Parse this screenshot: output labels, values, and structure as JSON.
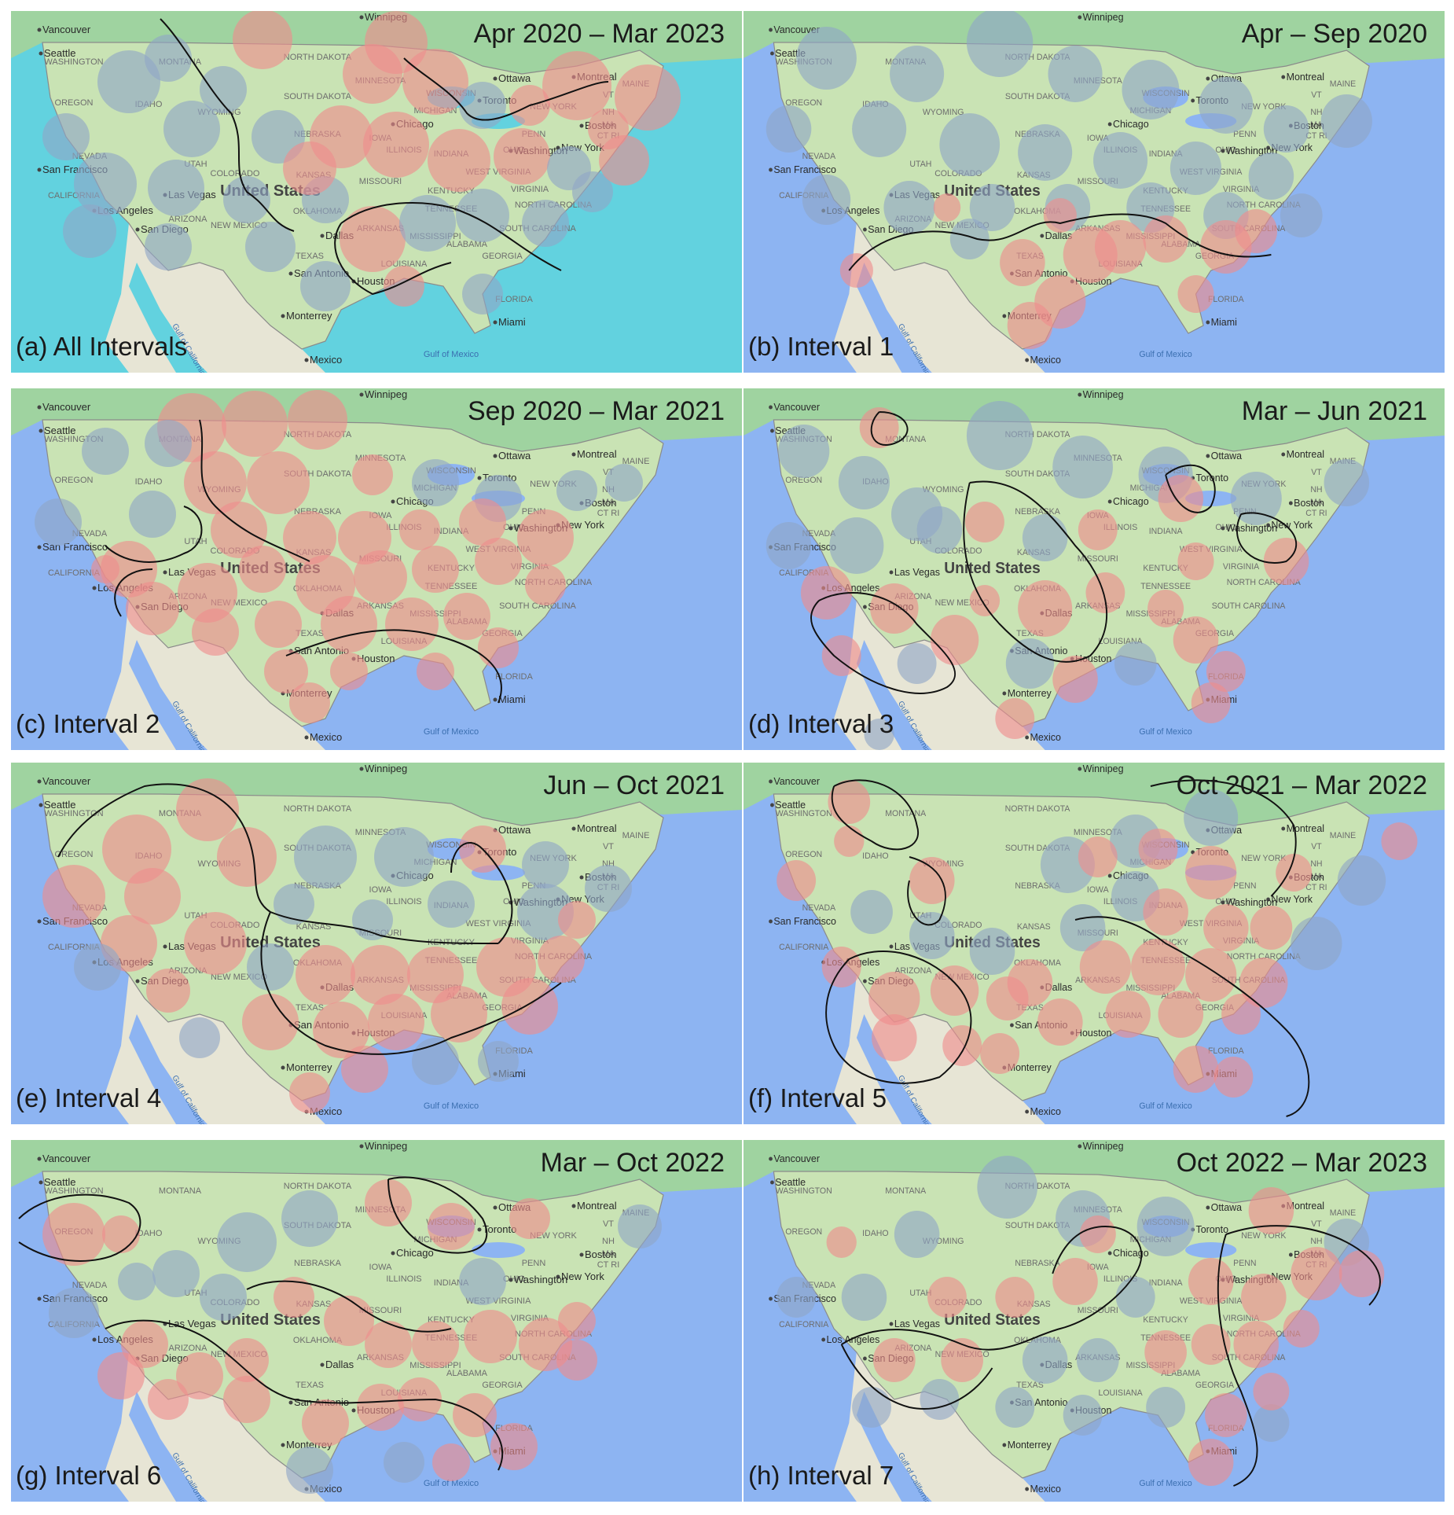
{
  "colors": {
    "ocean_a": "#62d2df",
    "ocean": "#8db4f2",
    "land": "#c9e3b4",
    "land_north": "#9fd3a0",
    "land_mexico": "#e7e5d5",
    "border": "#8a8a8a",
    "hot": "#ef8d8d",
    "cold": "#8fa6c7",
    "contour": "#111111"
  },
  "map_labels": {
    "cities": [
      "Vancouver",
      "Seattle",
      "Winnipeg",
      "Ottawa",
      "Montreal",
      "Toronto",
      "Boston",
      "New York",
      "Washington",
      "Chicago",
      "San Francisco",
      "Las Vegas",
      "Los Angeles",
      "San Diego",
      "Dallas",
      "San Antonio",
      "Houston",
      "Miami",
      "Monterrey",
      "Mexico"
    ],
    "states": [
      "WASHINGTON",
      "OREGON",
      "CALIFORNIA",
      "NEVADA",
      "IDAHO",
      "MONTANA",
      "WYOMING",
      "UTAH",
      "COLORADO",
      "ARIZONA",
      "NEW MEXICO",
      "TEXAS",
      "OKLAHOMA",
      "KANSAS",
      "NEBRASKA",
      "SOUTH DAKOTA",
      "NORTH DAKOTA",
      "MINNESOTA",
      "IOWA",
      "MISSOURI",
      "ARKANSAS",
      "LOUISIANA",
      "MISSISSIPPI",
      "ALABAMA",
      "GEORGIA",
      "FLORIDA",
      "SOUTH CAROLINA",
      "NORTH CAROLINA",
      "TENNESSEE",
      "KENTUCKY",
      "VIRGINIA",
      "WEST VIRGINIA",
      "OHIO",
      "INDIANA",
      "ILLINOIS",
      "WISCONSIN",
      "MICHIGAN",
      "PENN",
      "NEW YORK",
      "VT",
      "NH",
      "MAINE",
      "MA",
      "CT RI"
    ],
    "country": "United States",
    "water": "Gulf of Mexico",
    "gulf_ca": "Gulf of California"
  },
  "panels": [
    {
      "caption": "(a) All Intervals",
      "range": "Apr 2020 – Mar 2023"
    },
    {
      "caption": "(b) Interval 1",
      "range": "Apr – Sep 2020"
    },
    {
      "caption": "(c) Interval 2",
      "range": "Sep 2020 – Mar 2021"
    },
    {
      "caption": "(d) Interval 3",
      "range": "Mar – Jun 2021"
    },
    {
      "caption": "(e) Interval 4",
      "range": "Jun – Oct 2021"
    },
    {
      "caption": "(f) Interval 5",
      "range": "Oct 2021 – Mar 2022"
    },
    {
      "caption": "(g) Interval 6",
      "range": "Mar – Oct 2022"
    },
    {
      "caption": "(h) Interval 7",
      "range": "Oct 2022 – Mar 2023"
    }
  ]
}
